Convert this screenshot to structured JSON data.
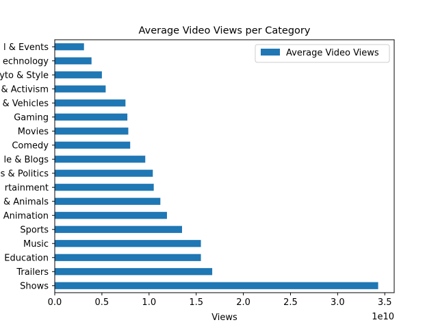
{
  "chart_data": {
    "type": "bar",
    "orientation": "horizontal",
    "title": "Average Video Views per Category",
    "xlabel": "Views",
    "ylabel": "",
    "x_offset_label": "1e10",
    "xlim": [
      0,
      3.6
    ],
    "xticks": [
      0.0,
      0.5,
      1.0,
      1.5,
      2.0,
      2.5,
      3.0,
      3.5
    ],
    "xtick_labels": [
      "0.0",
      "0.5",
      "1.0",
      "1.5",
      "2.0",
      "2.5",
      "3.0",
      "3.5"
    ],
    "value_unit_multiplier": 10000000000,
    "legend_position": "top-right",
    "grid": false,
    "categories": [
      "Shows",
      "Trailers",
      "Education",
      "Music",
      "Sports",
      "Film & Animation",
      "Pets & Animals",
      "Entertainment",
      "News & Politics",
      "People & Blogs",
      "Comedy",
      "Movies",
      "Gaming",
      "Autos & Vehicles",
      "Nonprofits & Activism",
      "Howto & Style",
      "Science & Technology",
      "Travel & Events"
    ],
    "category_labels_visible": [
      "Shows",
      "Trailers",
      "Education",
      "Music",
      "Sports",
      "Animation",
      "& Animals",
      "rtainment",
      "s & Politics",
      "le & Blogs",
      "Comedy",
      "Movies",
      "Gaming",
      "& Vehicles",
      "& Activism",
      "yto & Style",
      "echnology",
      "l & Events"
    ],
    "series": [
      {
        "name": "Average Video Views",
        "color": "#1f77b4",
        "values": [
          3.43,
          1.67,
          1.55,
          1.55,
          1.35,
          1.19,
          1.12,
          1.05,
          1.04,
          0.96,
          0.8,
          0.78,
          0.77,
          0.75,
          0.54,
          0.5,
          0.39,
          0.31
        ]
      }
    ]
  }
}
